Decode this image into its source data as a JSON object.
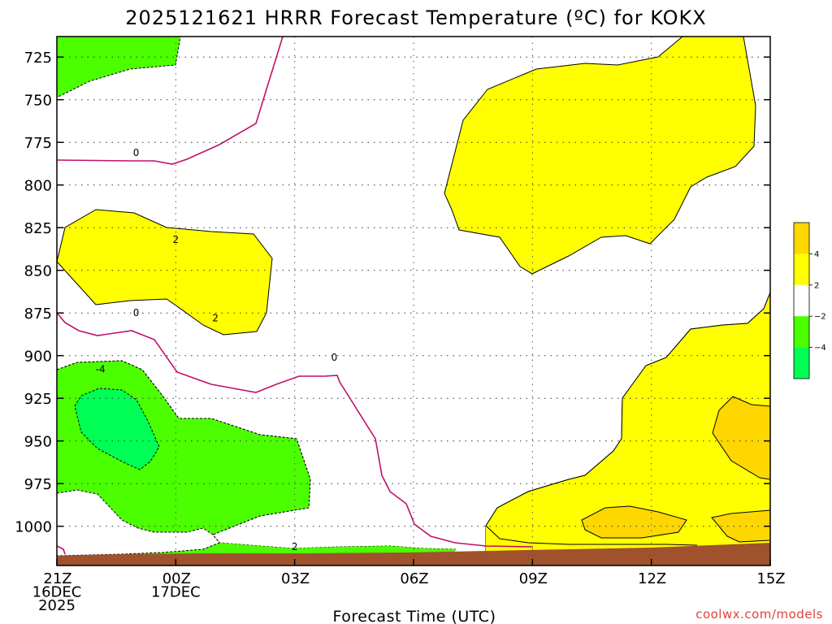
{
  "chart_data": {
    "type": "contour",
    "title": "2025121621 HRRR Forecast Temperature (ºC) for KOKX",
    "xlabel": "Forecast Time (UTC)",
    "x_ticks": [
      {
        "hour": 0,
        "lines": [
          "21Z",
          "16DEC",
          "2025"
        ]
      },
      {
        "hour": 3,
        "lines": [
          "00Z",
          "17DEC"
        ]
      },
      {
        "hour": 6,
        "lines": [
          "03Z"
        ]
      },
      {
        "hour": 9,
        "lines": [
          "06Z"
        ]
      },
      {
        "hour": 12,
        "lines": [
          "09Z"
        ]
      },
      {
        "hour": 15,
        "lines": [
          "12Z"
        ]
      },
      {
        "hour": 18,
        "lines": [
          "15Z"
        ]
      }
    ],
    "y_ticks": [
      "725",
      "750",
      "775",
      "800",
      "825",
      "850",
      "875",
      "900",
      "925",
      "950",
      "975",
      "1000"
    ],
    "y_tick_values": [
      725,
      750,
      775,
      800,
      825,
      850,
      875,
      900,
      925,
      950,
      975,
      1000
    ],
    "xlim_hours": [
      0,
      18
    ],
    "ylim_hpa": [
      713,
      1023
    ],
    "grid": true,
    "colorbar": {
      "labels": [
        "4",
        "2",
        "−2",
        "−4"
      ],
      "bands": [
        {
          "range": "> 4",
          "color": "#ffd700"
        },
        {
          "range": "2 to 4",
          "color": "#ffff00"
        },
        {
          "range": "-2 to 2",
          "color": "#ffffff"
        },
        {
          "range": "-4 to -2",
          "color": "#4cff00"
        },
        {
          "range": "< -4",
          "color": "#00ff55"
        }
      ]
    },
    "contour_labels": [
      {
        "text": "0",
        "hour": 2.0,
        "hpa": 781
      },
      {
        "text": "2",
        "hour": 3.0,
        "hpa": 832
      },
      {
        "text": "0",
        "hour": 2.0,
        "hpa": 875
      },
      {
        "text": "2",
        "hour": 4.0,
        "hpa": 878
      },
      {
        "text": "0",
        "hour": 7.0,
        "hpa": 901
      },
      {
        "text": "-4",
        "hour": 1.1,
        "hpa": 908
      },
      {
        "text": "2",
        "hour": 6.0,
        "hpa": 1012
      }
    ],
    "terrain_color": "#a0522d"
  },
  "credit": "coolwx.com/models"
}
